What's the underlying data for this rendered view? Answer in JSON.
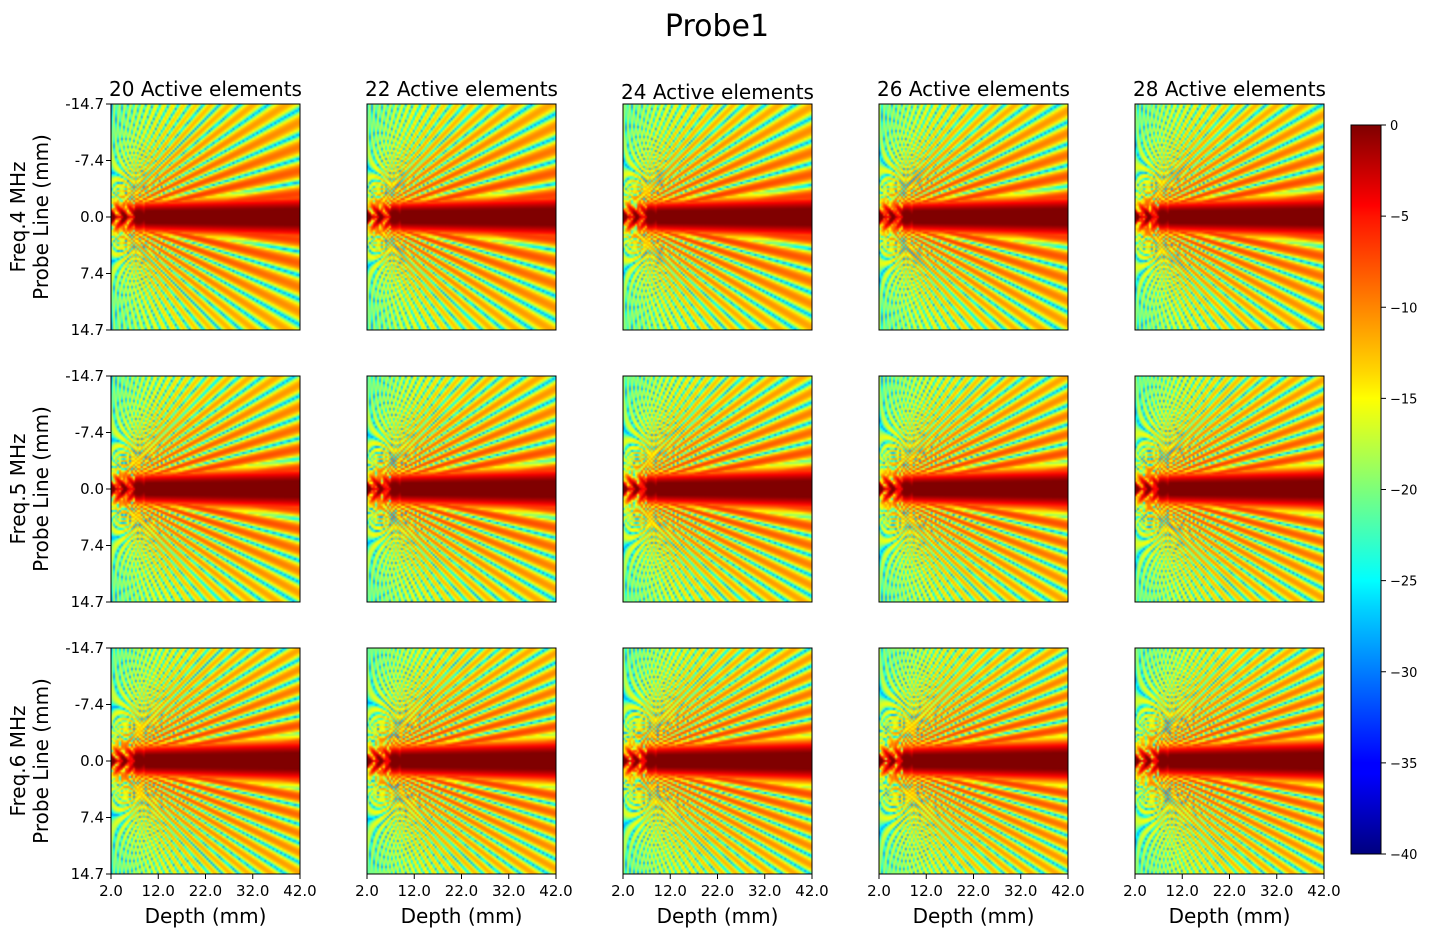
{
  "chart_data": {
    "type": "heatmap",
    "title": "Probe1",
    "columns": [
      "20 Active elements",
      "22 Active elements",
      "24 Active elements",
      "26 Active elements",
      "28 Active elements"
    ],
    "rows": [
      {
        "freq_mhz": 4,
        "ylabel_top": "Freq.4 MHz",
        "ylabel_bottom": "Probe Line (mm)"
      },
      {
        "freq_mhz": 5,
        "ylabel_top": "Freq.5 MHz",
        "ylabel_bottom": "Probe Line (mm)"
      },
      {
        "freq_mhz": 6,
        "ylabel_top": "Freq.6 MHz",
        "ylabel_bottom": "Probe Line (mm)"
      }
    ],
    "active_elements": [
      20,
      22,
      24,
      26,
      28
    ],
    "xlabel": "Depth (mm)",
    "x_ticks": [
      "2.0",
      "12.0",
      "22.0",
      "32.0",
      "42.0"
    ],
    "x_range": [
      2.0,
      42.0
    ],
    "y_ticks": [
      "-14.7",
      "-7.4",
      "0.0",
      "7.4",
      "14.7"
    ],
    "y_range": [
      -14.7,
      14.7
    ],
    "colorbar": {
      "colormap": "jet",
      "range": [
        -40,
        0
      ],
      "ticks": [
        "0",
        "−5",
        "−10",
        "−15",
        "−20",
        "−25",
        "−30",
        "−35",
        "−40"
      ],
      "tick_values": [
        0,
        -5,
        -10,
        -15,
        -20,
        -25,
        -30,
        -35,
        -40
      ]
    }
  }
}
